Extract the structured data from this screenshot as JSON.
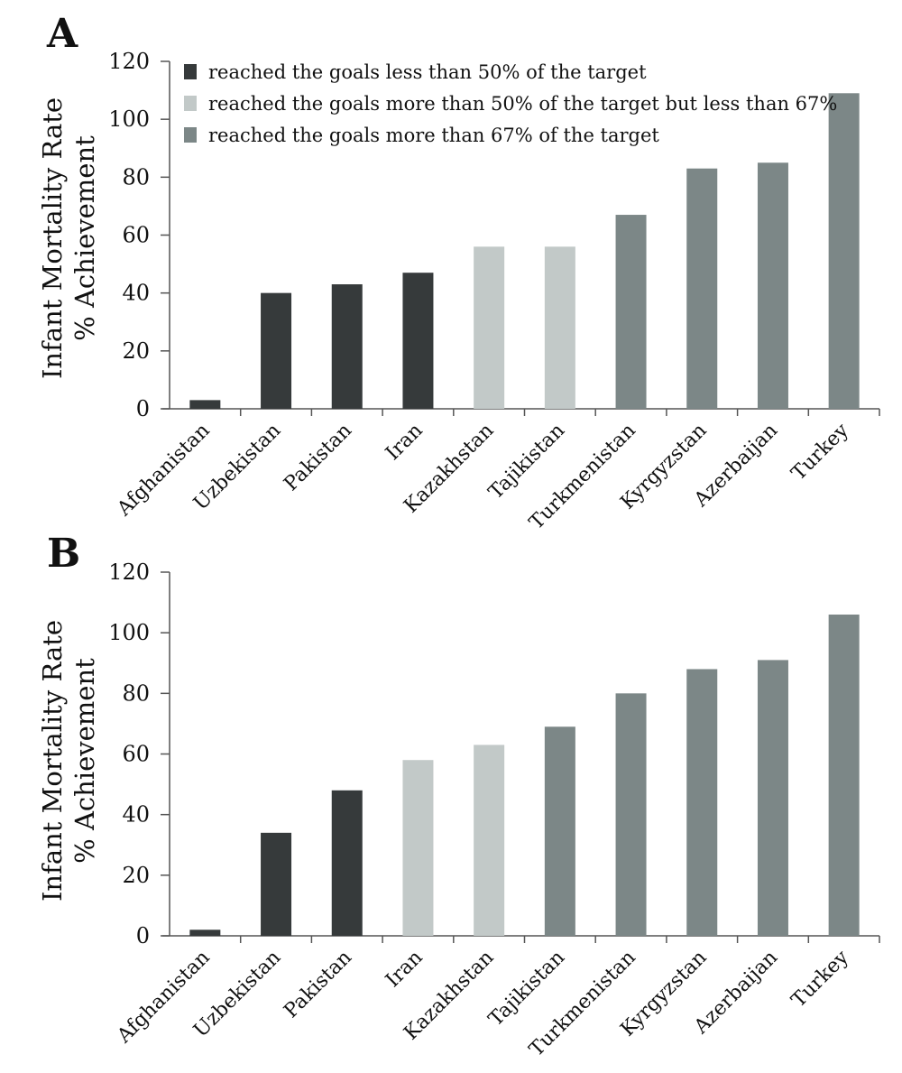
{
  "colors": {
    "below_50": "#363a3b",
    "between_50_67": "#c2c9c8",
    "above_67": "#7c8787",
    "axis": "#555555"
  },
  "legend": {
    "position": "top-left",
    "items": [
      {
        "key": "below_50",
        "label": "reached the goals less than 50% of the target"
      },
      {
        "key": "between_50_67",
        "label": "reached the goals more than 50% of the target but less than 67%"
      },
      {
        "key": "above_67",
        "label": "reached the goals more than 67% of the target"
      }
    ]
  },
  "chart_data": [
    {
      "type": "bar",
      "panel": "A",
      "ylabel_line1": "Infant Mortality Rate",
      "ylabel_line2": "% Achievement",
      "ylim": [
        0,
        120
      ],
      "yticks": [
        "0",
        "20",
        "40",
        "60",
        "80",
        "100",
        "120"
      ],
      "grid": false,
      "categories": [
        "Afghanistan",
        "Uzbekistan",
        "Pakistan",
        "Iran",
        "Kazakhstan",
        "Tajikistan",
        "Turkmenistan",
        "Kyrgyzstan",
        "Azerbaijan",
        "Turkey"
      ],
      "values": [
        3,
        40,
        43,
        47,
        56,
        56,
        67,
        83,
        85,
        109
      ],
      "groups": [
        "below_50",
        "below_50",
        "below_50",
        "below_50",
        "between_50_67",
        "between_50_67",
        "above_67",
        "above_67",
        "above_67",
        "above_67"
      ]
    },
    {
      "type": "bar",
      "panel": "B",
      "ylabel_line1": "Infant Mortality Rate",
      "ylabel_line2": "% Achievement",
      "ylim": [
        0,
        120
      ],
      "yticks": [
        "0",
        "20",
        "40",
        "60",
        "80",
        "100",
        "120"
      ],
      "grid": false,
      "categories": [
        "Afghanistan",
        "Uzbekistan",
        "Pakistan",
        "Iran",
        "Kazakhstan",
        "Tajikistan",
        "Turkmenistan",
        "Kyrgyzstan",
        "Azerbaijan",
        "Turkey"
      ],
      "values": [
        2,
        34,
        48,
        58,
        63,
        69,
        80,
        88,
        91,
        106
      ],
      "groups": [
        "below_50",
        "below_50",
        "below_50",
        "between_50_67",
        "between_50_67",
        "above_67",
        "above_67",
        "above_67",
        "above_67",
        "above_67"
      ]
    }
  ]
}
